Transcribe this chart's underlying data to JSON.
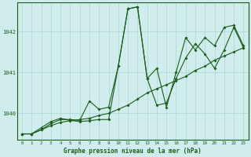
{
  "title": "Graphe pression niveau de la mer (hPa)",
  "bg_color": "#d0ecec",
  "grid_color": "#aad4d4",
  "line_color": "#1a5c1a",
  "xlim": [
    -0.5,
    23.5
  ],
  "ylim": [
    1039.35,
    1042.7
  ],
  "yticks": [
    1040,
    1041,
    1042
  ],
  "xticks": [
    0,
    1,
    2,
    3,
    4,
    5,
    6,
    7,
    8,
    9,
    10,
    11,
    12,
    13,
    14,
    15,
    16,
    17,
    18,
    19,
    20,
    21,
    22,
    23
  ],
  "series1_x": [
    0,
    1,
    2,
    3,
    4,
    5,
    6,
    7,
    8,
    9,
    10,
    11,
    12,
    13,
    14,
    15,
    16,
    17,
    18,
    19,
    20,
    21,
    22,
    23
  ],
  "series1_y": [
    1039.5,
    1039.5,
    1039.6,
    1039.7,
    1039.78,
    1039.82,
    1039.85,
    1039.88,
    1039.95,
    1040.0,
    1040.1,
    1040.2,
    1040.35,
    1040.5,
    1040.6,
    1040.7,
    1040.8,
    1040.9,
    1041.05,
    1041.15,
    1041.3,
    1041.4,
    1041.5,
    1041.6
  ],
  "series2_x": [
    0,
    1,
    2,
    3,
    4,
    5,
    6,
    7,
    8,
    9,
    10,
    11,
    12,
    13,
    14,
    15,
    16,
    17,
    18,
    19,
    20,
    21,
    22,
    23
  ],
  "series2_y": [
    1039.5,
    1039.5,
    1039.6,
    1039.75,
    1039.85,
    1039.85,
    1039.83,
    1040.3,
    1040.1,
    1040.15,
    1041.15,
    1042.55,
    1042.6,
    1040.85,
    1040.2,
    1040.25,
    1040.85,
    1041.35,
    1041.7,
    1041.45,
    1041.1,
    1041.55,
    1042.1,
    1041.6
  ],
  "series3_x": [
    0,
    1,
    2,
    3,
    4,
    5,
    6,
    7,
    8,
    9,
    10,
    11,
    12,
    13,
    14,
    15,
    16,
    17,
    18,
    19,
    20,
    21,
    22,
    23
  ],
  "series3_y": [
    1039.5,
    1039.5,
    1039.65,
    1039.8,
    1039.88,
    1039.83,
    1039.8,
    1039.82,
    1039.85,
    1039.85,
    1041.15,
    1042.55,
    1042.6,
    1040.85,
    1041.1,
    1040.15,
    1041.0,
    1041.85,
    1041.55,
    1041.85,
    1041.65,
    1042.1,
    1042.15,
    1041.65
  ]
}
